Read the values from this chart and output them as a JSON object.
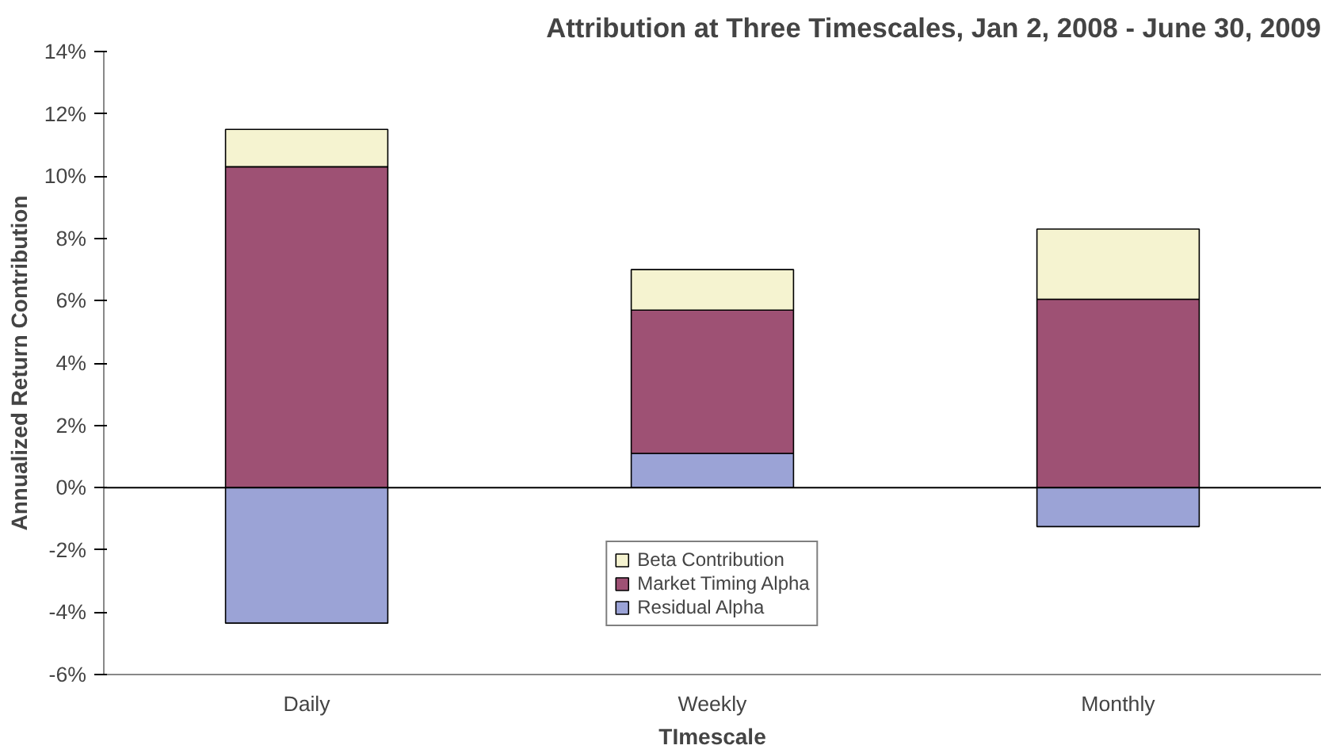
{
  "chart_data": {
    "type": "bar",
    "title": "Attribution at Three Timescales, Jan 2, 2008 - June 30, 2009",
    "xlabel": "TImescale",
    "ylabel": "Annualized Return Contribution",
    "categories": [
      "Daily",
      "Weekly",
      "Monthly"
    ],
    "stacked": true,
    "series": [
      {
        "name": "Residual Alpha",
        "color": "#9ba3d6",
        "values": [
          -4.35,
          1.1,
          -1.25
        ]
      },
      {
        "name": "Market Timing Alpha",
        "color": "#9e5174",
        "values": [
          10.3,
          4.6,
          6.05
        ]
      },
      {
        "name": "Beta Contribution",
        "color": "#f5f3d0",
        "values": [
          1.2,
          1.3,
          2.25
        ]
      }
    ],
    "ylim": [
      -6,
      14
    ],
    "yticks": [
      {
        "value": -6,
        "label": "-6%"
      },
      {
        "value": -4,
        "label": "-4%"
      },
      {
        "value": -2,
        "label": "-2%"
      },
      {
        "value": 0,
        "label": "0%"
      },
      {
        "value": 2,
        "label": "2%"
      },
      {
        "value": 4,
        "label": "4%"
      },
      {
        "value": 6,
        "label": "6%"
      },
      {
        "value": 8,
        "label": "8%"
      },
      {
        "value": 10,
        "label": "10%"
      },
      {
        "value": 12,
        "label": "12%"
      },
      {
        "value": 14,
        "label": "14%"
      }
    ],
    "ref_lines": [
      {
        "axis": "y",
        "value": 0,
        "color": "#000000"
      }
    ],
    "grid": false,
    "legend": "bottom"
  }
}
